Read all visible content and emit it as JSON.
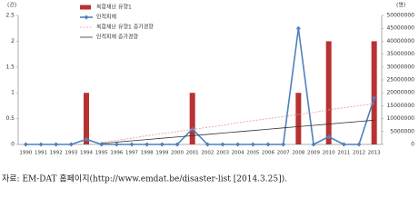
{
  "chart_data": {
    "type": "bar",
    "y_unit": "(건)",
    "y2_unit": "(명)",
    "categories": [
      "1990",
      "1991",
      "1992",
      "1993",
      "1994",
      "1995",
      "1996",
      "1997",
      "1998",
      "1999",
      "2000",
      "2001",
      "2002",
      "2003",
      "2004",
      "2005",
      "2006",
      "2007",
      "2008",
      "2009",
      "2010",
      "2011",
      "2012",
      "2013"
    ],
    "series": [
      {
        "name": "복합재난 유형1",
        "type": "bar",
        "color": "#b83232",
        "values": [
          0,
          0,
          0,
          0,
          1,
          0,
          0,
          0,
          0,
          0,
          0,
          1,
          0,
          0,
          0,
          0,
          0,
          0,
          1,
          0,
          2,
          0,
          0,
          2
        ]
      },
      {
        "name": "인적피해",
        "type": "line",
        "axis": "y2",
        "color": "#4f81bd",
        "marker": "diamond",
        "values": [
          0,
          0,
          0,
          0,
          2000000,
          0,
          0,
          0,
          0,
          0,
          0,
          6000000,
          0,
          0,
          0,
          0,
          0,
          0,
          45000000,
          0,
          3000000,
          0,
          0,
          18000000
        ]
      },
      {
        "name": "복합재난 유형1 증가경향",
        "type": "line",
        "color": "#e39a9a",
        "dashed": true,
        "values": [
          null,
          null,
          null,
          null,
          null,
          0.04,
          0.08,
          0.12,
          0.17,
          0.21,
          0.25,
          0.29,
          0.33,
          0.37,
          0.42,
          0.46,
          0.5,
          0.54,
          0.58,
          0.62,
          0.67,
          0.71,
          0.75,
          0.79
        ]
      },
      {
        "name": "인적피해 증가경향",
        "type": "line",
        "axis": "y2",
        "color": "#333333",
        "values": [
          null,
          null,
          null,
          null,
          null,
          400000,
          900000,
          1400000,
          1900000,
          2400000,
          2900000,
          3400000,
          3900000,
          4400000,
          4900000,
          5400000,
          5900000,
          6400000,
          6900000,
          7400000,
          7900000,
          8400000,
          8900000,
          9400000
        ]
      }
    ],
    "ylim": [
      0,
      2.5
    ],
    "yticks": [
      0,
      0.5,
      1,
      1.5,
      2,
      2.5
    ],
    "y2lim": [
      0,
      50000000
    ],
    "y2ticks": [
      0,
      5000000,
      10000000,
      15000000,
      20000000,
      25000000,
      30000000,
      35000000,
      40000000,
      45000000,
      50000000
    ],
    "legend": "top-left",
    "source": "자료: EM-DAT 홈페이지(http://www.emdat.be/disaster-list [2014.3.25])."
  }
}
